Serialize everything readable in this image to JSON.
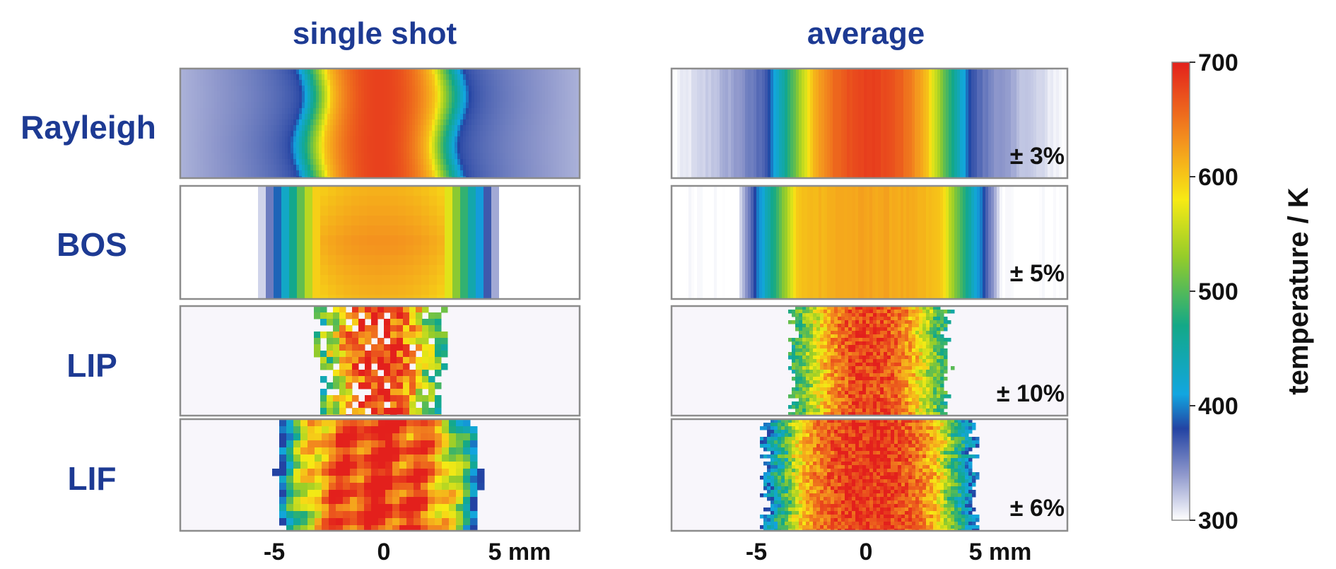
{
  "colors": {
    "label_blue": "#1d3a93"
  },
  "chart_data": {
    "type": "heatmap",
    "title": "",
    "columns": [
      {
        "key": "single",
        "title": "single shot"
      },
      {
        "key": "average",
        "title": "average"
      }
    ],
    "rows": [
      {
        "label": "Rayleigh",
        "average_uncertainty": "± 3%",
        "single_half_width_mm": 3.8,
        "average_half_width_mm": 4.6,
        "single_hot_fraction": 0.62,
        "average_hot_fraction": 0.58,
        "single_texture": "smooth",
        "average_texture": "smooth",
        "peak_K": 680,
        "edge_K": 380
      },
      {
        "label": "BOS",
        "average_uncertainty": "± 5%",
        "single_half_width_mm": 5.5,
        "average_half_width_mm": 6.0,
        "single_hot_fraction": 0.52,
        "average_hot_fraction": 0.55,
        "single_texture": "blocky",
        "average_texture": "smooth",
        "peak_K": 620,
        "edge_K": 300
      },
      {
        "label": "LIP",
        "average_uncertainty": "± 10%",
        "single_half_width_mm": 2.8,
        "average_half_width_mm": 3.5,
        "single_hot_fraction": 0.6,
        "average_hot_fraction": 0.6,
        "single_texture": "speckle",
        "average_texture": "noise",
        "peak_K": 680,
        "edge_K": 470
      },
      {
        "label": "LIF",
        "average_uncertainty": "± 6%",
        "single_half_width_mm": 4.3,
        "average_half_width_mm": 4.8,
        "single_hot_fraction": 0.68,
        "average_hot_fraction": 0.65,
        "single_texture": "blobs",
        "average_texture": "noise",
        "peak_K": 690,
        "edge_K": 380
      }
    ],
    "x": {
      "label": "",
      "range_mm": [
        -9,
        9
      ],
      "ticks": [
        -5,
        0,
        5
      ],
      "tick_labels": [
        "-5",
        "0",
        "5 mm"
      ]
    },
    "colorbar": {
      "label": "temperature / K",
      "range": [
        300,
        700
      ],
      "ticks": [
        300,
        400,
        500,
        600,
        700
      ],
      "tick_labels": [
        "300",
        "400",
        "500",
        "600",
        "700"
      ],
      "stops": [
        {
          "value": 300,
          "color": "#ffffff"
        },
        {
          "value": 340,
          "color": "#8f98cc"
        },
        {
          "value": 380,
          "color": "#2343a3"
        },
        {
          "value": 410,
          "color": "#12a6e0"
        },
        {
          "value": 470,
          "color": "#13a887"
        },
        {
          "value": 530,
          "color": "#95cc2a"
        },
        {
          "value": 580,
          "color": "#f7ea14"
        },
        {
          "value": 630,
          "color": "#f4941e"
        },
        {
          "value": 700,
          "color": "#e3201c"
        }
      ]
    }
  }
}
